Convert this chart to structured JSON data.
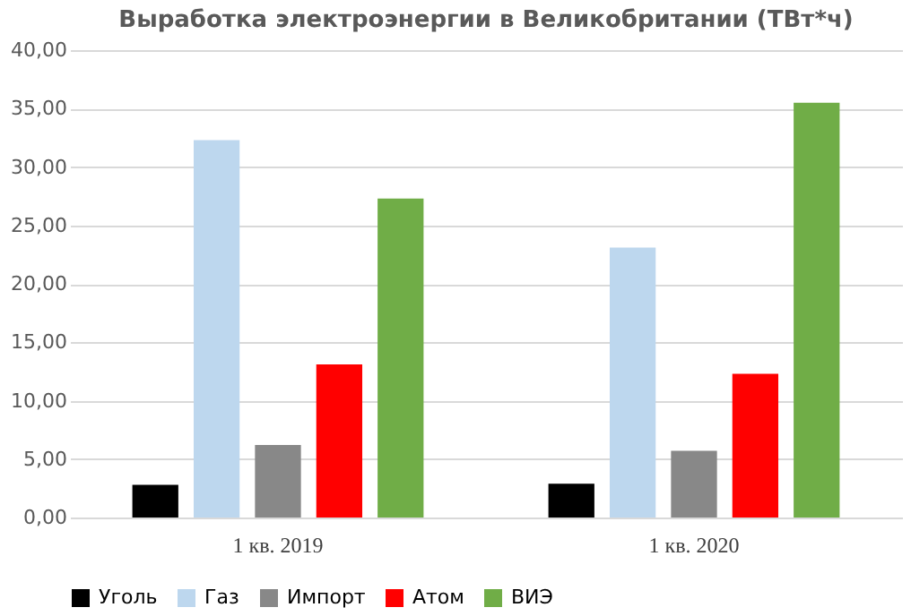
{
  "chart_data": {
    "type": "bar",
    "title": "Выработка электроэнергии в Великобритании (ТВт*ч)",
    "categories": [
      "1 кв. 2019",
      "1 кв. 2020"
    ],
    "series": [
      {
        "name": "Уголь",
        "color": "#000000",
        "values": [
          2.8,
          2.9
        ]
      },
      {
        "name": "Газ",
        "color": "#bdd7ee",
        "values": [
          32.3,
          23.1
        ]
      },
      {
        "name": "Импорт",
        "color": "#888888",
        "values": [
          6.2,
          5.7
        ]
      },
      {
        "name": "Атом",
        "color": "#ff0000",
        "values": [
          13.1,
          12.3
        ]
      },
      {
        "name": "ВИЭ",
        "color": "#70ad47",
        "values": [
          27.3,
          35.5
        ]
      }
    ],
    "ylim": [
      0,
      40
    ],
    "yticks": [
      {
        "value": 0,
        "label": "0,00"
      },
      {
        "value": 5,
        "label": "5,00"
      },
      {
        "value": 10,
        "label": "10,00"
      },
      {
        "value": 15,
        "label": "15,00"
      },
      {
        "value": 20,
        "label": "20,00"
      },
      {
        "value": 25,
        "label": "25,00"
      },
      {
        "value": 30,
        "label": "30,00"
      },
      {
        "value": 35,
        "label": "35,00"
      },
      {
        "value": 40,
        "label": "40,00"
      }
    ],
    "grid": "y",
    "legend": "bottom"
  }
}
